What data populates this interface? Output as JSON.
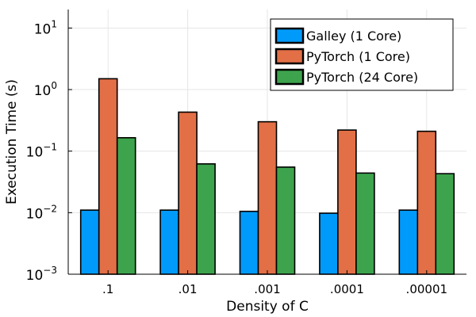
{
  "chart_data": {
    "type": "bar",
    "yscale": "log",
    "title": "",
    "xlabel": "Density of C",
    "ylabel": "Execution Time (s)",
    "ylim": [
      0.001,
      20
    ],
    "yticks": [
      {
        "value": 0.001,
        "base": "10",
        "exp": "−3"
      },
      {
        "value": 0.01,
        "base": "10",
        "exp": "−2"
      },
      {
        "value": 0.1,
        "base": "10",
        "exp": "−1"
      },
      {
        "value": 1,
        "base": "10",
        "exp": "0"
      },
      {
        "value": 10,
        "base": "10",
        "exp": "1"
      }
    ],
    "categories": [
      ".1",
      ".01",
      ".001",
      ".0001",
      ".00001"
    ],
    "grid": true,
    "legend_position": "top-right",
    "series": [
      {
        "name": "Galley (1 Core)",
        "color": "#009AFA",
        "values": [
          0.011,
          0.011,
          0.0105,
          0.0098,
          0.011
        ]
      },
      {
        "name": "PyTorch (1 Core)",
        "color": "#E26F46",
        "values": [
          1.5,
          0.43,
          0.3,
          0.22,
          0.21
        ]
      },
      {
        "name": "PyTorch (24 Core)",
        "color": "#3DA44D",
        "values": [
          0.165,
          0.062,
          0.055,
          0.044,
          0.043
        ]
      }
    ]
  }
}
